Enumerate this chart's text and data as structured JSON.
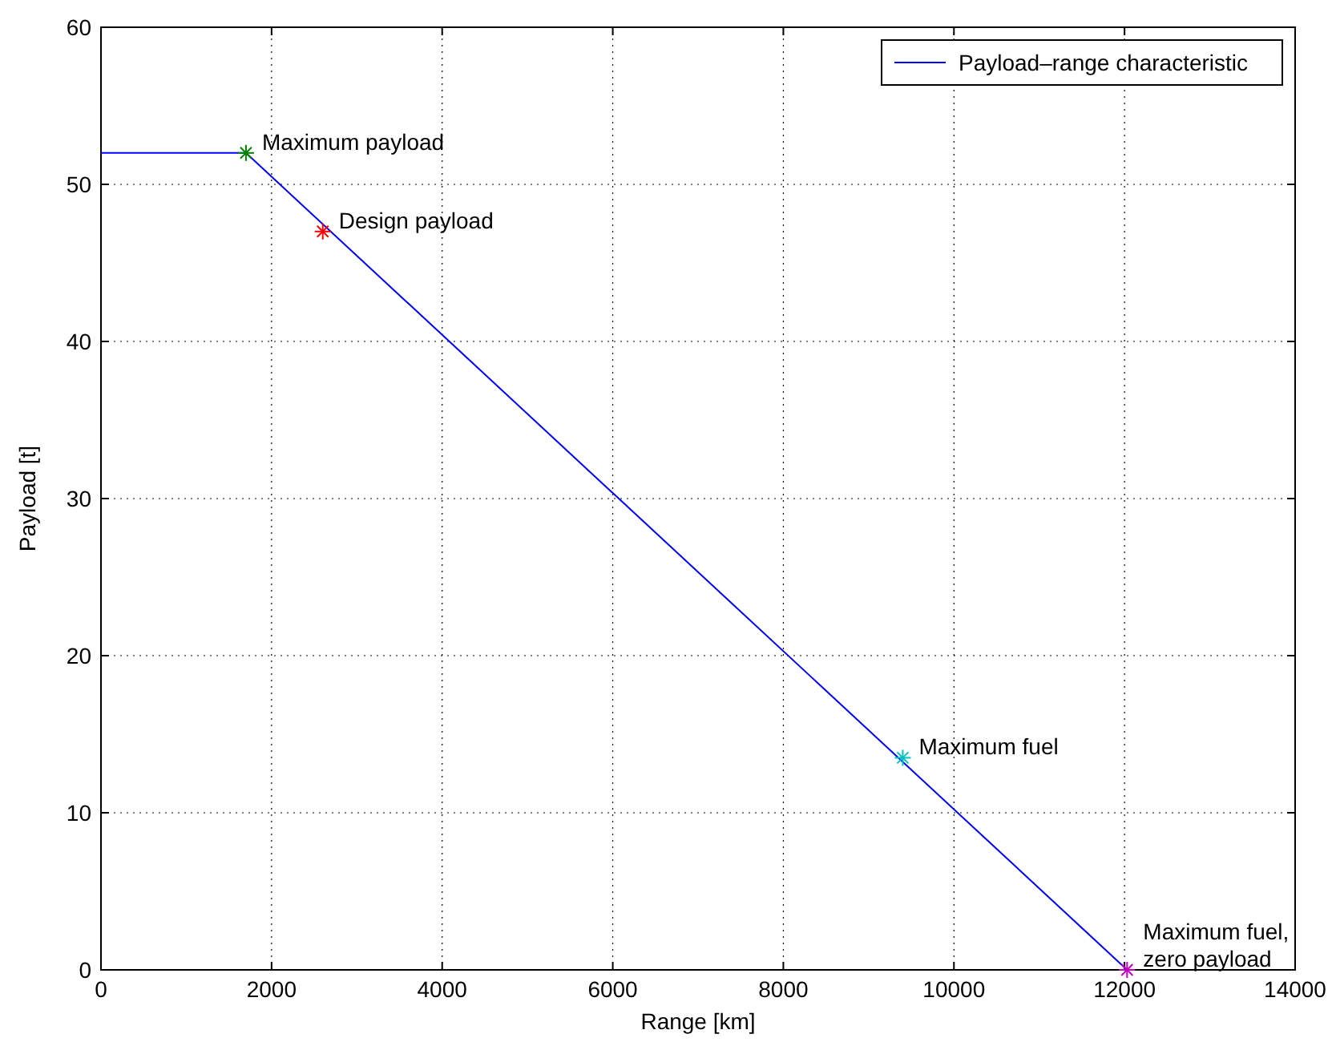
{
  "chart_data": {
    "type": "line",
    "xlabel": "Range [km]",
    "ylabel": "Payload [t]",
    "xlim": [
      0,
      14000
    ],
    "ylim": [
      0,
      60
    ],
    "xticks": [
      0,
      2000,
      4000,
      6000,
      8000,
      10000,
      12000,
      14000
    ],
    "yticks": [
      0,
      10,
      20,
      30,
      40,
      50,
      60
    ],
    "grid": true,
    "legend": "top right",
    "series": [
      {
        "name": "Payload–range characteristic",
        "type": "line",
        "color": "#0000ff",
        "x": [
          0,
          1700,
          12030
        ],
        "values": [
          52,
          52,
          0
        ]
      },
      {
        "type": "scatter",
        "color": "#008000",
        "marker": "cross",
        "x": [
          1700
        ],
        "values": [
          52
        ]
      },
      {
        "type": "scatter",
        "color": "#ff0000",
        "marker": "cross",
        "x": [
          2600
        ],
        "values": [
          47
        ]
      },
      {
        "type": "scatter",
        "color": "#00bfbf",
        "marker": "cross",
        "x": [
          9400
        ],
        "values": [
          13.5
        ]
      },
      {
        "type": "scatter",
        "color": "#bf00bf",
        "marker": "cross",
        "x": [
          12030
        ],
        "values": [
          0
        ]
      }
    ],
    "annotations": [
      {
        "text": "Maximum payload",
        "x": 1700,
        "y": 52
      },
      {
        "text": "Design payload",
        "x": 2600,
        "y": 47
      },
      {
        "text": "Maximum fuel",
        "x": 9400,
        "y": 13.5
      },
      {
        "text": "Maximum fuel,\nzero payload",
        "x": 12030,
        "y": 0
      }
    ]
  }
}
